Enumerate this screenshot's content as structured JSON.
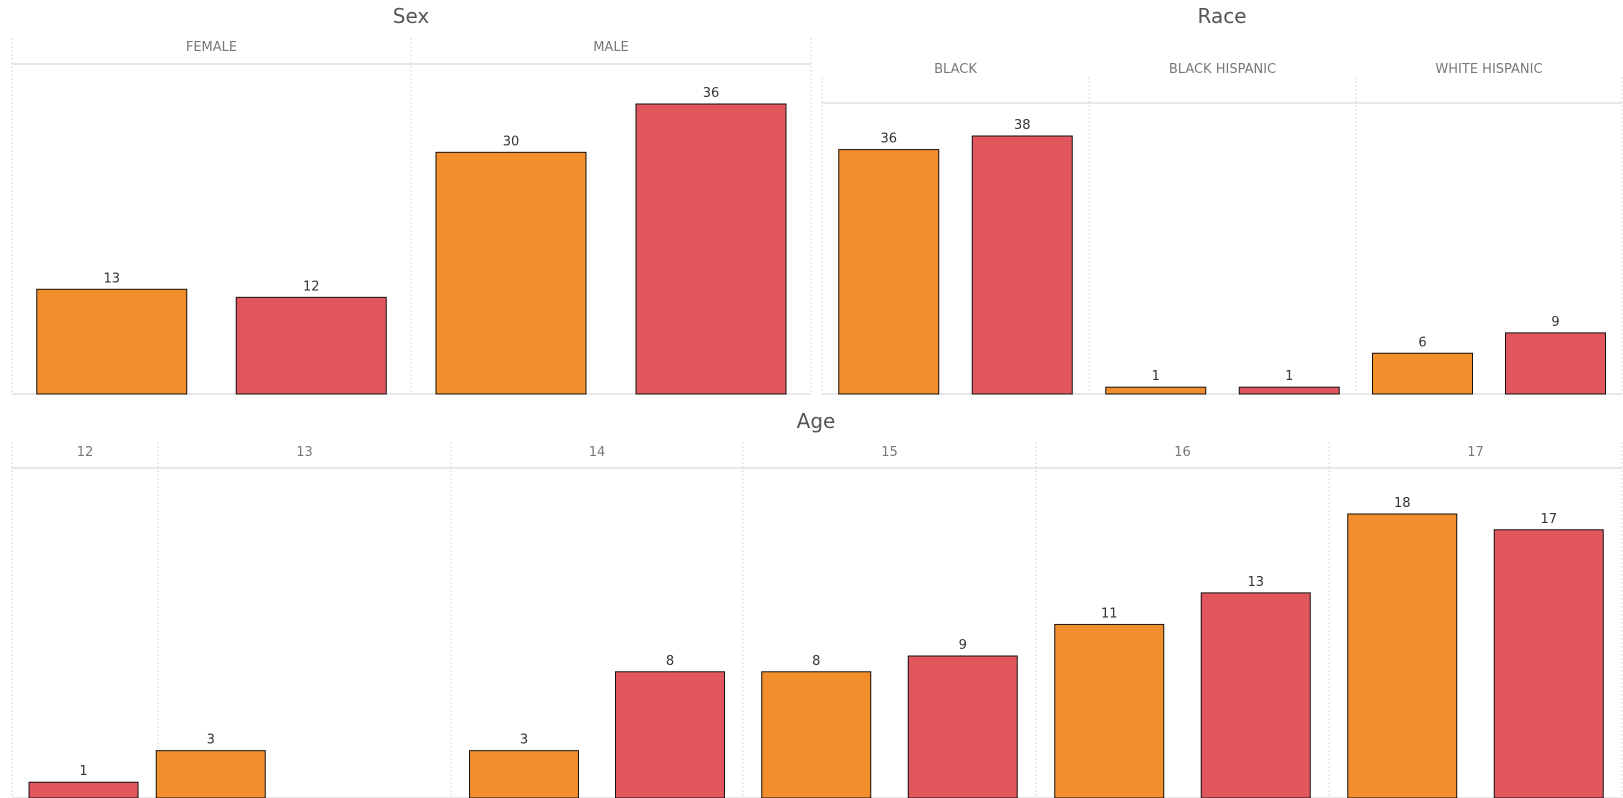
{
  "colors": {
    "orange": "#F28E2B",
    "red": "#E1575D",
    "title": "#555555",
    "header": "#777777",
    "label": "#333333",
    "rule": "#d9d9d9"
  },
  "chart_data": [
    {
      "type": "bar",
      "title": "Sex",
      "facets": [
        {
          "name": "FEMALE",
          "values": [
            13,
            12
          ],
          "colors": [
            "orange",
            "red"
          ]
        },
        {
          "name": "MALE",
          "values": [
            30,
            36
          ],
          "colors": [
            "orange",
            "red"
          ]
        }
      ],
      "ylim": [
        0,
        36
      ],
      "grid": false,
      "legend": "none"
    },
    {
      "type": "bar",
      "title": "Race",
      "facets": [
        {
          "name": "BLACK",
          "values": [
            36,
            38
          ],
          "colors": [
            "orange",
            "red"
          ]
        },
        {
          "name": "BLACK HISPANIC",
          "values": [
            1,
            1
          ],
          "colors": [
            "orange",
            "red"
          ]
        },
        {
          "name": "WHITE HISPANIC",
          "values": [
            6,
            9
          ],
          "colors": [
            "orange",
            "red"
          ]
        }
      ],
      "ylim": [
        0,
        38
      ],
      "grid": false,
      "legend": "none"
    },
    {
      "type": "bar",
      "title": "Age",
      "facets": [
        {
          "name": "12",
          "values": [
            1
          ],
          "colors": [
            "red"
          ]
        },
        {
          "name": "13",
          "values": [
            3
          ],
          "colors": [
            "orange"
          ]
        },
        {
          "name": "14",
          "values": [
            3,
            8
          ],
          "colors": [
            "orange",
            "red"
          ]
        },
        {
          "name": "15",
          "values": [
            8,
            9
          ],
          "colors": [
            "orange",
            "red"
          ]
        },
        {
          "name": "16",
          "values": [
            11,
            13
          ],
          "colors": [
            "orange",
            "red"
          ]
        },
        {
          "name": "17",
          "values": [
            18,
            17
          ],
          "colors": [
            "orange",
            "red"
          ]
        }
      ],
      "ylim": [
        0,
        18
      ],
      "grid": false,
      "legend": "none"
    }
  ]
}
